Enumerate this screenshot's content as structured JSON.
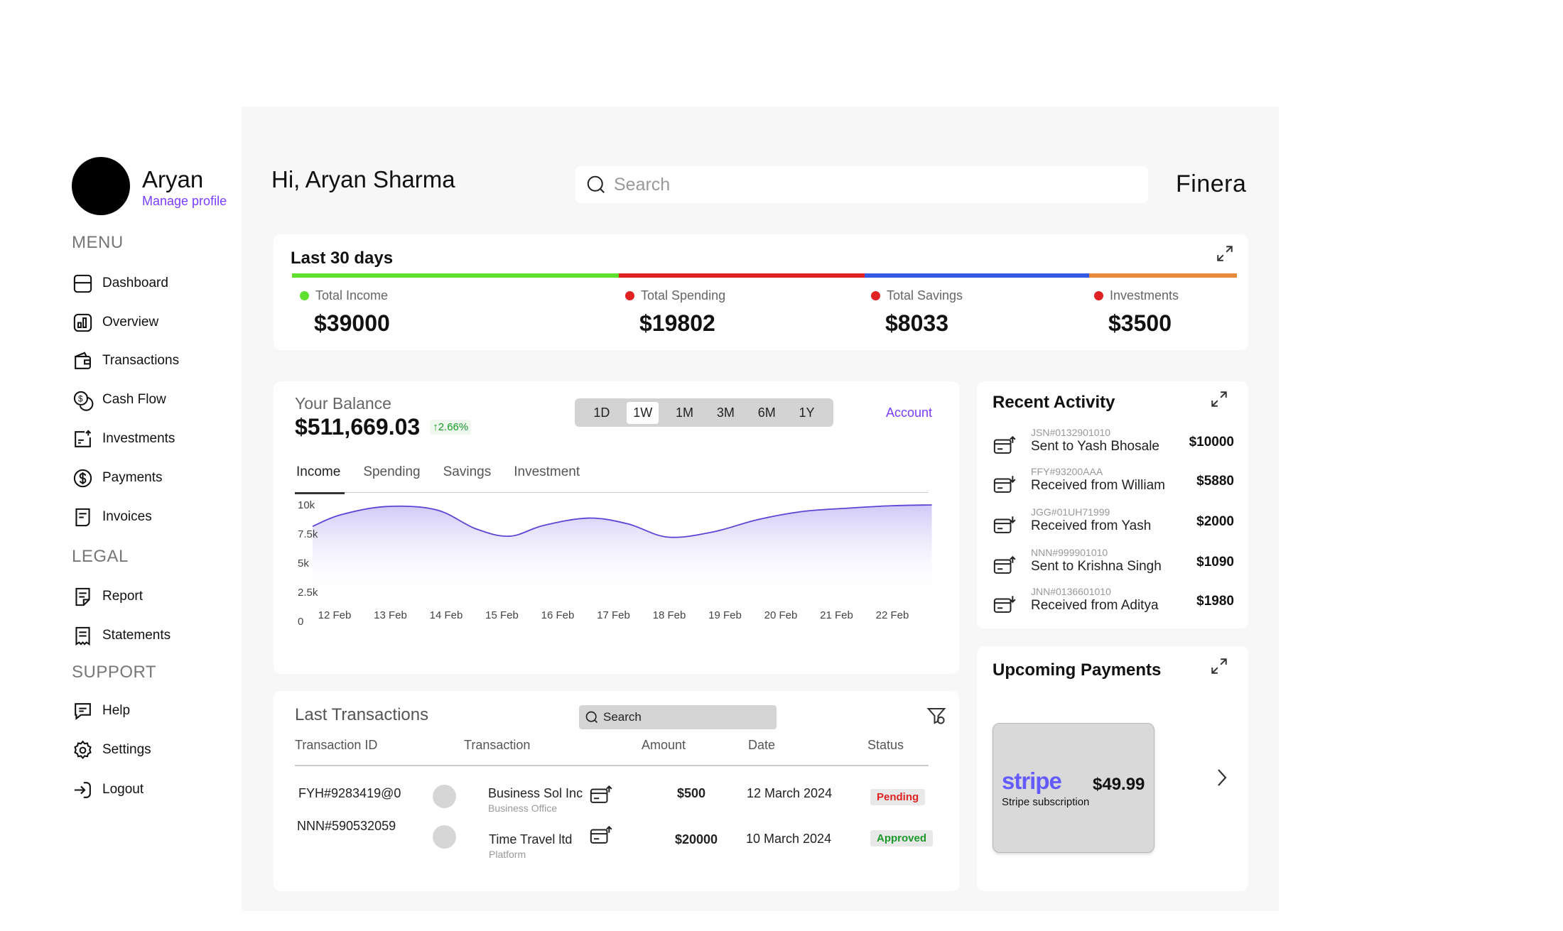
{
  "profile": {
    "name": "Aryan",
    "manage_label": "Manage profile"
  },
  "menu": {
    "heading": "MENU",
    "items": [
      "Dashboard",
      "Overview",
      "Transactions",
      "Cash Flow",
      "Investments",
      "Payments",
      "Invoices"
    ]
  },
  "legal": {
    "heading": "LEGAL",
    "items": [
      "Report",
      "Statements"
    ]
  },
  "support": {
    "heading": "SUPPORT",
    "items": [
      "Help",
      "Settings",
      "Logout"
    ]
  },
  "header": {
    "greeting": "Hi, Aryan Sharma",
    "search_placeholder": "Search",
    "brand": "Finera"
  },
  "summary": {
    "title": "Last 30 days",
    "stats": [
      {
        "label": "Total Income",
        "value": "$39000",
        "color": "#5fe02f"
      },
      {
        "label": "Total Spending",
        "value": "$19802",
        "color": "#e02222"
      },
      {
        "label": "Total Savings",
        "value": "$8033",
        "color": "#e02222"
      },
      {
        "label": "Investments",
        "value": "$3500",
        "color": "#e02222"
      }
    ],
    "bar_colors": [
      "#5fe02f",
      "#e02222",
      "#3559e0",
      "#e88a3c"
    ]
  },
  "balance": {
    "label": "Your Balance",
    "value": "$511,669.03",
    "change": "2.66%",
    "ranges": [
      "1D",
      "1W",
      "1M",
      "3M",
      "6M",
      "1Y"
    ],
    "active_range": "1W",
    "account_link": "Account",
    "tabs": [
      "Income",
      "Spending",
      "Savings",
      "Investment"
    ],
    "active_tab": "Income"
  },
  "chart_data": {
    "type": "area",
    "categories": [
      "12 Feb",
      "13 Feb",
      "14 Feb",
      "15 Feb",
      "16 Feb",
      "17 Feb",
      "18 Feb",
      "19 Feb",
      "20 Feb",
      "21 Feb",
      "22 Feb"
    ],
    "y_ticks": [
      "10k",
      "7.5k",
      "5k",
      "2.5k",
      "0"
    ],
    "ylim": [
      0,
      10000
    ],
    "x": [
      0,
      0.5,
      1.3,
      2.2,
      2.9,
      3.5,
      4.1,
      4.9,
      5.6,
      6.3,
      7.1,
      7.9,
      8.7,
      9.5,
      10.3,
      11.0
    ],
    "values": [
      7400,
      8800,
      9800,
      9400,
      7100,
      6200,
      7500,
      8400,
      7700,
      6100,
      6700,
      8200,
      9200,
      9600,
      9900,
      10000
    ],
    "grid": false,
    "legend": "none",
    "color": "#5b45d6"
  },
  "recent": {
    "title": "Recent Activity",
    "items": [
      {
        "id": "JSN#0132901010",
        "desc": "Sent to Yash Bhosale",
        "amount": "$10000",
        "dir": "out"
      },
      {
        "id": "FFY#93200AAA",
        "desc": "Received from William",
        "amount": "$5880",
        "dir": "in"
      },
      {
        "id": "JGG#01UH71999",
        "desc": "Received from Yash",
        "amount": "$2000",
        "dir": "in"
      },
      {
        "id": "NNN#999901010",
        "desc": "Sent to Krishna Singh",
        "amount": "$1090",
        "dir": "out"
      },
      {
        "id": "JNN#0136601010",
        "desc": "Received from Aditya",
        "amount": "$1980",
        "dir": "in"
      }
    ]
  },
  "upcoming": {
    "title": "Upcoming Payments",
    "logo": "stripe",
    "amount": "$49.99",
    "name": "Stripe subscription",
    "logo_color": "#635bff"
  },
  "transactions": {
    "title": "Last Transactions",
    "search_placeholder": "Search",
    "headers": [
      "Transaction ID",
      "Transaction",
      "Amount",
      "Date",
      "Status"
    ],
    "rows": [
      {
        "id": "FYH#9283419@0",
        "name": "Business Sol Inc",
        "sub": "Business Office",
        "amount": "$500",
        "date": "12 March 2024",
        "status": "Pending",
        "status_color": "#e02222"
      },
      {
        "id": "NNN#590532059",
        "name": "Time Travel ltd",
        "sub": "Platform",
        "amount": "$20000",
        "date": "10 March 2024",
        "status": "Approved",
        "status_color": "#1a9a2a"
      }
    ]
  }
}
